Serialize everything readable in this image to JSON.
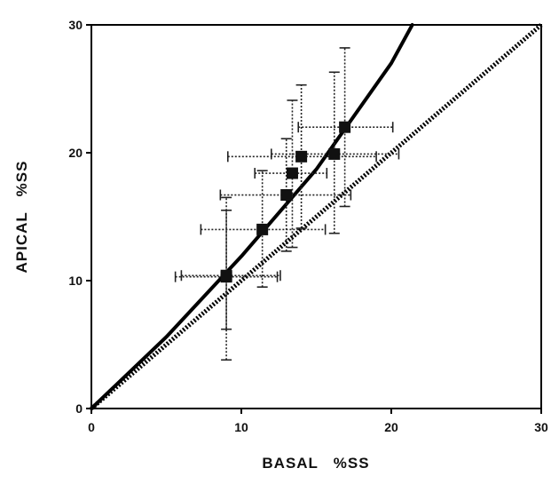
{
  "chart_data": {
    "type": "scatter",
    "title": "",
    "xlabel": "BASAL   %SS",
    "ylabel": "APICAL   %SS",
    "xlim": [
      0,
      30
    ],
    "ylim": [
      0,
      30
    ],
    "xticks": [
      "0",
      "10",
      "20",
      "30"
    ],
    "yticks": [
      "0",
      "10",
      "20",
      "30"
    ],
    "grid": false,
    "series": [
      {
        "points": [
          {
            "x": 9.0,
            "y": 10.3,
            "xerr": [
              5.6,
              12.4
            ],
            "yerr": [
              3.8,
              16.5
            ]
          },
          {
            "x": 9.0,
            "y": 10.4,
            "xerr": [
              6.0,
              12.6
            ],
            "yerr": [
              6.2,
              15.5
            ]
          },
          {
            "x": 11.4,
            "y": 14.0,
            "xerr": [
              7.3,
              15.6
            ],
            "yerr": [
              9.5,
              18.6
            ]
          },
          {
            "x": 13.0,
            "y": 16.7,
            "xerr": [
              8.6,
              17.3
            ],
            "yerr": [
              12.3,
              21.1
            ]
          },
          {
            "x": 13.4,
            "y": 18.4,
            "xerr": [
              10.9,
              15.7
            ],
            "yerr": [
              12.6,
              24.1
            ]
          },
          {
            "x": 14.0,
            "y": 19.7,
            "xerr": [
              9.1,
              19.0
            ],
            "yerr": [
              14.1,
              25.3
            ]
          },
          {
            "x": 16.2,
            "y": 19.9,
            "xerr": [
              12.0,
              20.5
            ],
            "yerr": [
              13.7,
              26.3
            ]
          },
          {
            "x": 16.9,
            "y": 22.0,
            "xerr": [
              13.8,
              20.1
            ],
            "yerr": [
              15.8,
              28.2
            ]
          }
        ]
      }
    ],
    "fit_curve": [
      {
        "x": 0,
        "y": 0
      },
      {
        "x": 5,
        "y": 5.6
      },
      {
        "x": 10,
        "y": 11.9
      },
      {
        "x": 15,
        "y": 18.7
      },
      {
        "x": 20,
        "y": 27.0
      },
      {
        "x": 21.4,
        "y": 30.0
      }
    ],
    "identity_line": [
      {
        "x": 0,
        "y": 0
      },
      {
        "x": 30,
        "y": 30
      }
    ]
  }
}
